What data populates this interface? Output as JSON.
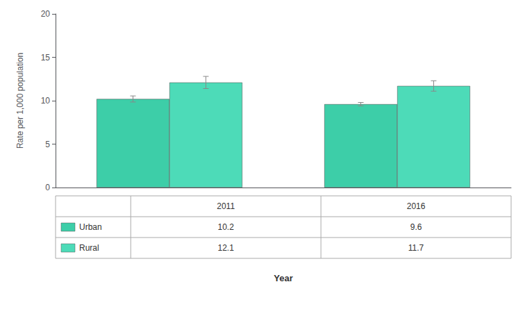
{
  "chart_data": {
    "type": "bar",
    "categories": [
      "2011",
      "2016"
    ],
    "series": [
      {
        "name": "Urban",
        "color": "#3dcea8",
        "values": [
          10.2,
          9.6
        ],
        "errors": [
          0.35,
          0.2
        ]
      },
      {
        "name": "Rural",
        "color": "#4ddbb8",
        "values": [
          12.1,
          11.7
        ],
        "errors": [
          0.7,
          0.6
        ]
      }
    ],
    "ylabel": "Rate per 1,000 population",
    "xlabel": "Year",
    "ylim": [
      0,
      20
    ],
    "yticks": [
      0,
      5,
      10,
      15,
      20
    ],
    "grid": false,
    "tick_labels": "y"
  }
}
